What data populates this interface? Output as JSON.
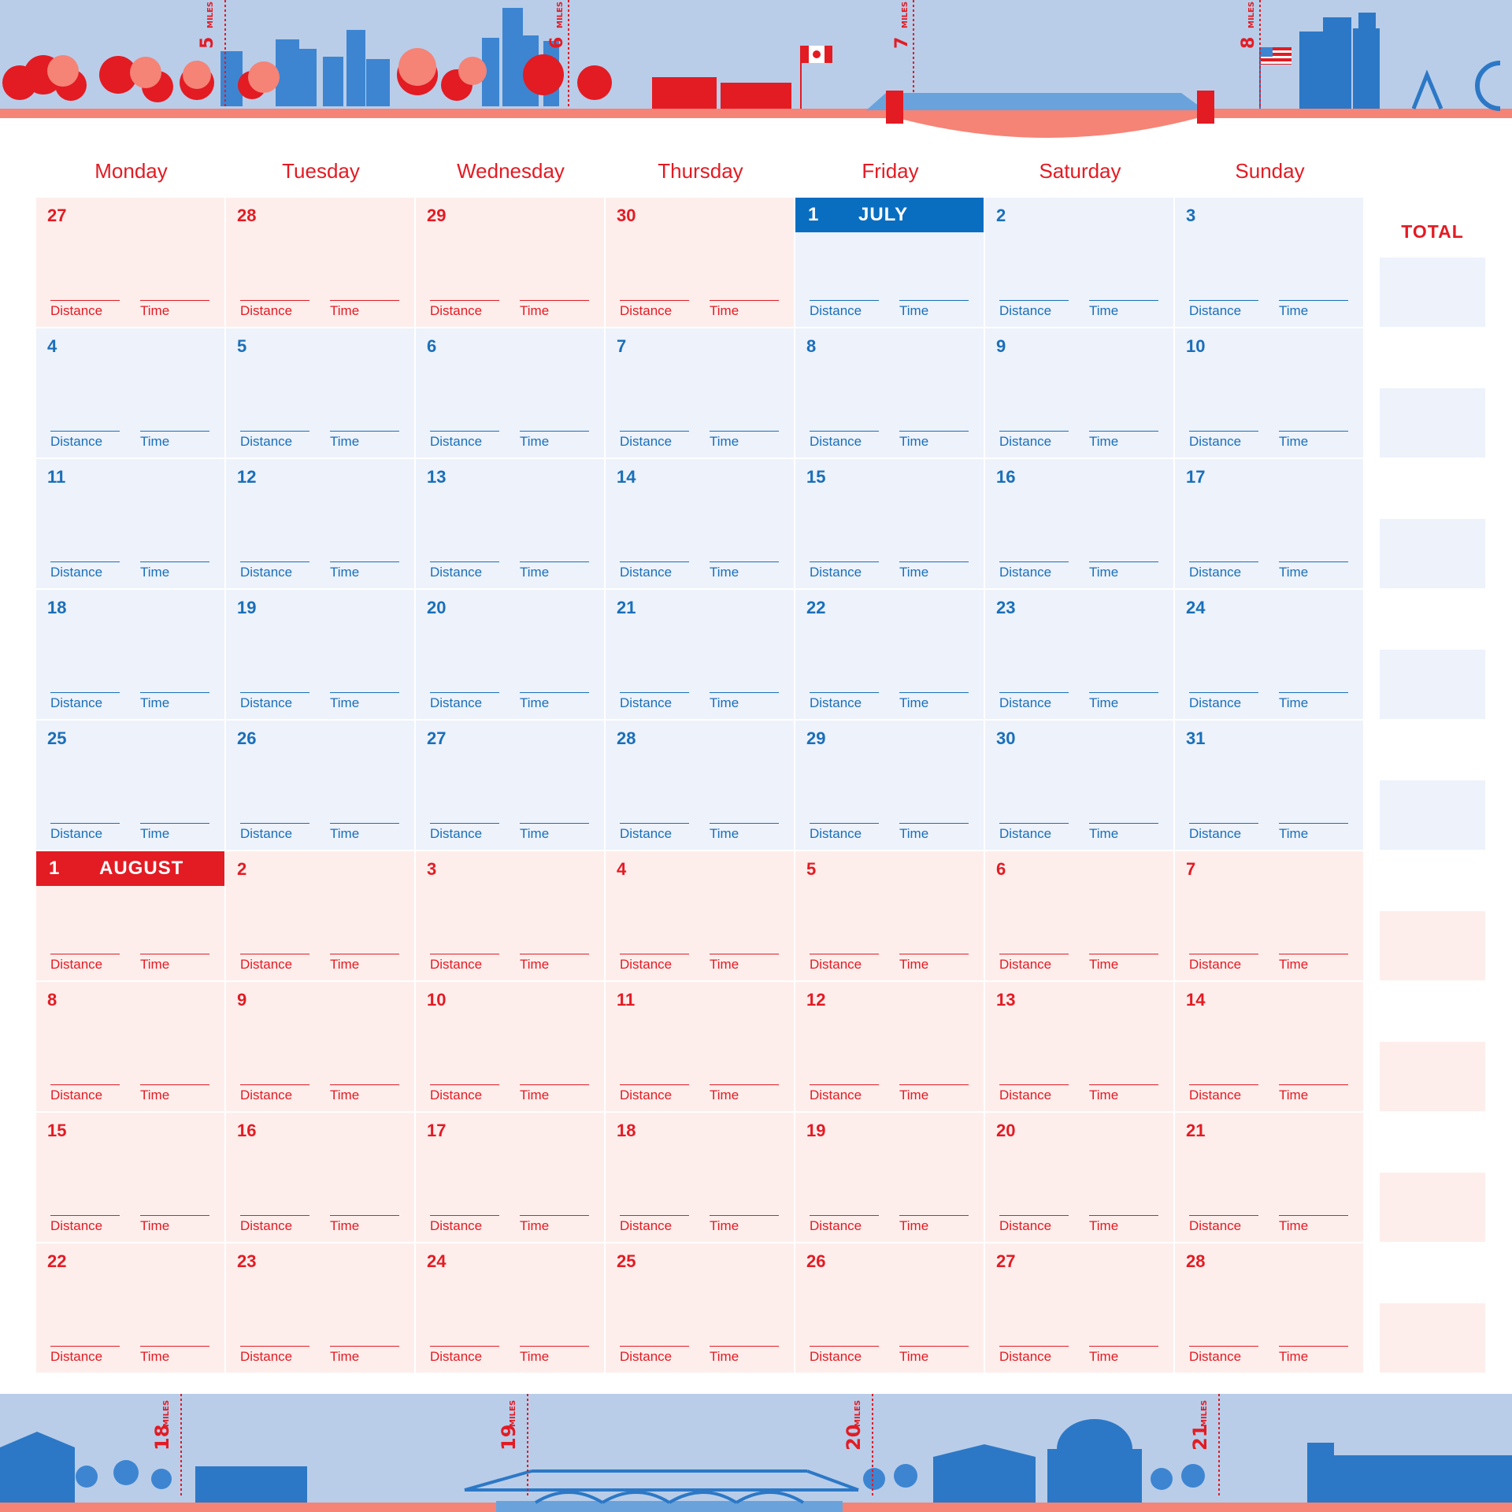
{
  "banner_top": {
    "mile_markers": [
      {
        "number": "5",
        "unit": "MILES"
      },
      {
        "number": "6",
        "unit": "MILES"
      },
      {
        "number": "7",
        "unit": "MILES"
      },
      {
        "number": "8",
        "unit": "MILES"
      }
    ]
  },
  "banner_bottom": {
    "mile_markers": [
      {
        "number": "18",
        "unit": "MILES"
      },
      {
        "number": "19",
        "unit": "MILES"
      },
      {
        "number": "20",
        "unit": "MILES"
      },
      {
        "number": "21",
        "unit": "MILES"
      }
    ]
  },
  "weekdays": [
    "Monday",
    "Tuesday",
    "Wednesday",
    "Thursday",
    "Friday",
    "Saturday",
    "Sunday"
  ],
  "field_labels": {
    "distance": "Distance",
    "time": "Time"
  },
  "total_label": "TOTAL",
  "colors": {
    "red": "#e31b23",
    "blue": "#1a6fb8",
    "blue_banner": "#0a6ec0",
    "pink_bg": "#fdeeec",
    "blue_bg": "#edf2fb",
    "sky": "#b9cde9",
    "coral": "#f58376"
  },
  "weeks": [
    {
      "days": [
        {
          "num": "27",
          "month": "june"
        },
        {
          "num": "28",
          "month": "june"
        },
        {
          "num": "29",
          "month": "june"
        },
        {
          "num": "30",
          "month": "june"
        },
        {
          "num": "1",
          "month": "july",
          "banner": "JULY"
        },
        {
          "num": "2",
          "month": "july"
        },
        {
          "num": "3",
          "month": "july"
        }
      ],
      "total_tone": "blue"
    },
    {
      "days": [
        {
          "num": "4",
          "month": "july"
        },
        {
          "num": "5",
          "month": "july"
        },
        {
          "num": "6",
          "month": "july"
        },
        {
          "num": "7",
          "month": "july"
        },
        {
          "num": "8",
          "month": "july"
        },
        {
          "num": "9",
          "month": "july"
        },
        {
          "num": "10",
          "month": "july"
        }
      ],
      "total_tone": "blue"
    },
    {
      "days": [
        {
          "num": "11",
          "month": "july"
        },
        {
          "num": "12",
          "month": "july"
        },
        {
          "num": "13",
          "month": "july"
        },
        {
          "num": "14",
          "month": "july"
        },
        {
          "num": "15",
          "month": "july"
        },
        {
          "num": "16",
          "month": "july"
        },
        {
          "num": "17",
          "month": "july"
        }
      ],
      "total_tone": "blue"
    },
    {
      "days": [
        {
          "num": "18",
          "month": "july"
        },
        {
          "num": "19",
          "month": "july"
        },
        {
          "num": "20",
          "month": "july"
        },
        {
          "num": "21",
          "month": "july"
        },
        {
          "num": "22",
          "month": "july"
        },
        {
          "num": "23",
          "month": "july"
        },
        {
          "num": "24",
          "month": "july"
        }
      ],
      "total_tone": "blue"
    },
    {
      "days": [
        {
          "num": "25",
          "month": "july"
        },
        {
          "num": "26",
          "month": "july"
        },
        {
          "num": "27",
          "month": "july"
        },
        {
          "num": "28",
          "month": "july"
        },
        {
          "num": "29",
          "month": "july"
        },
        {
          "num": "30",
          "month": "july"
        },
        {
          "num": "31",
          "month": "july"
        }
      ],
      "total_tone": "blue"
    },
    {
      "days": [
        {
          "num": "1",
          "month": "august",
          "banner": "AUGUST"
        },
        {
          "num": "2",
          "month": "august"
        },
        {
          "num": "3",
          "month": "august"
        },
        {
          "num": "4",
          "month": "august"
        },
        {
          "num": "5",
          "month": "august"
        },
        {
          "num": "6",
          "month": "august"
        },
        {
          "num": "7",
          "month": "august"
        }
      ],
      "total_tone": "pink"
    },
    {
      "days": [
        {
          "num": "8",
          "month": "august"
        },
        {
          "num": "9",
          "month": "august"
        },
        {
          "num": "10",
          "month": "august"
        },
        {
          "num": "11",
          "month": "august"
        },
        {
          "num": "12",
          "month": "august"
        },
        {
          "num": "13",
          "month": "august"
        },
        {
          "num": "14",
          "month": "august"
        }
      ],
      "total_tone": "pink"
    },
    {
      "days": [
        {
          "num": "15",
          "month": "august"
        },
        {
          "num": "16",
          "month": "august"
        },
        {
          "num": "17",
          "month": "august"
        },
        {
          "num": "18",
          "month": "august"
        },
        {
          "num": "19",
          "month": "august"
        },
        {
          "num": "20",
          "month": "august"
        },
        {
          "num": "21",
          "month": "august"
        }
      ],
      "total_tone": "pink"
    },
    {
      "days": [
        {
          "num": "22",
          "month": "august"
        },
        {
          "num": "23",
          "month": "august"
        },
        {
          "num": "24",
          "month": "august"
        },
        {
          "num": "25",
          "month": "august"
        },
        {
          "num": "26",
          "month": "august"
        },
        {
          "num": "27",
          "month": "august"
        },
        {
          "num": "28",
          "month": "august"
        }
      ],
      "total_tone": "pink"
    }
  ]
}
